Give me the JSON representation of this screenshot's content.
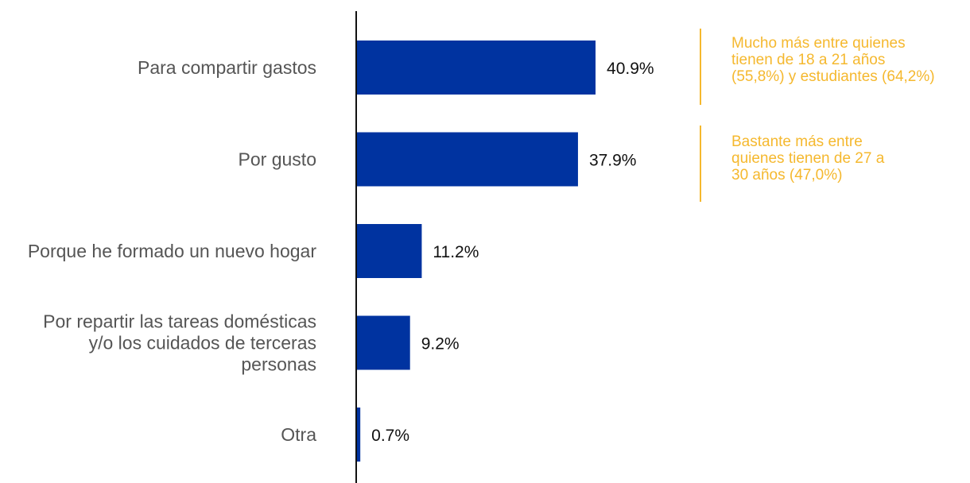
{
  "chart_data": {
    "type": "bar",
    "orientation": "horizontal",
    "categories": [
      [
        "Para compartir gastos"
      ],
      [
        "Por gusto"
      ],
      [
        "Porque he formado un nuevo hogar"
      ],
      [
        "Por repartir las tareas domésticas",
        "y/o los cuidados de terceras",
        "personas"
      ],
      [
        "Otra"
      ]
    ],
    "values": [
      40.9,
      37.9,
      11.2,
      9.2,
      0.7
    ],
    "value_labels": [
      "40.9%",
      "37.9%",
      "11.2%",
      "9.2%",
      "0.7%"
    ],
    "xlim": [
      0,
      100
    ],
    "grid": false,
    "annotations": [
      {
        "category_index": 0,
        "lines": [
          "Mucho más entre quienes",
          "tienen de 18 a 21 años",
          "(55,8%) y estudiantes (64,2%)"
        ]
      },
      {
        "category_index": 1,
        "lines": [
          "Bastante más entre",
          "quienes tienen de 27 a",
          "30 años (47,0%)"
        ]
      }
    ]
  },
  "colors": {
    "bar": "#0033a0",
    "axis": "#111111",
    "category_text": "#555555",
    "value_text": "#111111",
    "annotation": "#f5b82e"
  }
}
